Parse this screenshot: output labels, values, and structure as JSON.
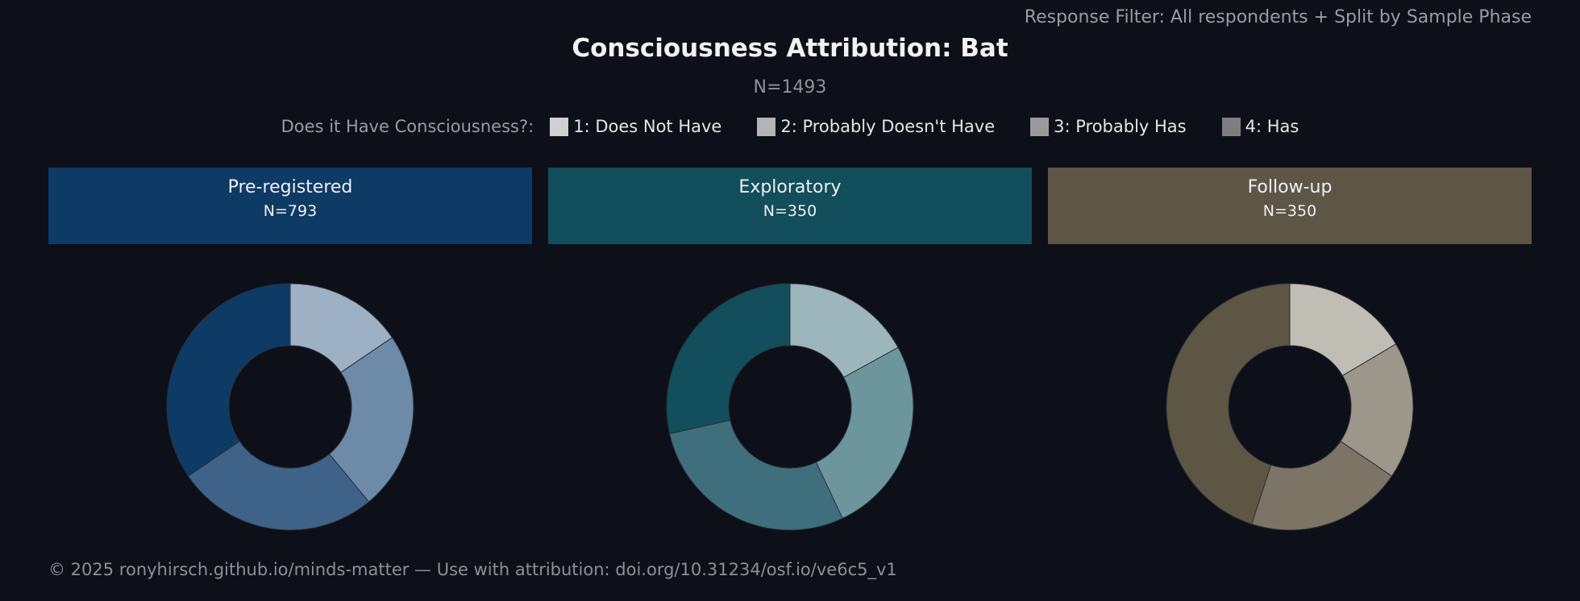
{
  "header": {
    "filter_text": "Response Filter: All respondents + Split by Sample Phase",
    "title": "Consciousness Attribution: Bat",
    "subtitle": "N=1493"
  },
  "legend": {
    "title": "Does it Have Consciousness?:",
    "items": [
      {
        "label": "1: Does Not Have",
        "color": "#d0d0d0"
      },
      {
        "label": "2: Probably Doesn't Have",
        "color": "#b4b4b4"
      },
      {
        "label": "3: Probably Has",
        "color": "#9a9a9a"
      },
      {
        "label": "4: Has",
        "color": "#7e7e7e"
      }
    ]
  },
  "panels": [
    {
      "name": "Pre-registered",
      "n_label": "N=793",
      "color": "#0e3a66"
    },
    {
      "name": "Exploratory",
      "n_label": "N=350",
      "color": "#124e5c"
    },
    {
      "name": "Follow-up",
      "n_label": "N=350",
      "color": "#5e5645"
    }
  ],
  "chart_data": [
    {
      "type": "pie",
      "subtype": "donut",
      "title": "Pre-registered",
      "categories": [
        "1: Does Not Have",
        "2: Probably Doesn't Have",
        "3: Probably Has",
        "4: Has"
      ],
      "values": [
        15.5,
        23.5,
        26.5,
        34.5
      ],
      "colors": [
        "#9eb0c4",
        "#6d8aa8",
        "#3f6289",
        "#0e3a66"
      ]
    },
    {
      "type": "pie",
      "subtype": "donut",
      "title": "Exploratory",
      "categories": [
        "1: Does Not Have",
        "2: Probably Doesn't Have",
        "3: Probably Has",
        "4: Has"
      ],
      "values": [
        17,
        26,
        28.5,
        28.5
      ],
      "colors": [
        "#9db6bc",
        "#6d959c",
        "#3f6f7c",
        "#124e5c"
      ]
    },
    {
      "type": "pie",
      "subtype": "donut",
      "title": "Follow-up",
      "categories": [
        "1: Does Not Have",
        "2: Probably Doesn't Have",
        "3: Probably Has",
        "4: Has"
      ],
      "values": [
        16.5,
        18,
        20.5,
        45
      ],
      "colors": [
        "#c0bdb4",
        "#9c978a",
        "#7c7565",
        "#5e5645"
      ]
    }
  ],
  "footer": {
    "text": "© 2025 ronyhirsch.github.io/minds-matter — Use with attribution: doi.org/10.31234/osf.io/ve6c5_v1"
  }
}
